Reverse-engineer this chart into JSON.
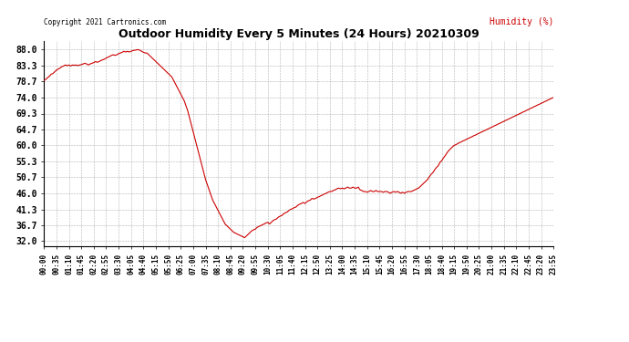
{
  "title": "Outdoor Humidity Every 5 Minutes (24 Hours) 20210309",
  "ylabel": "Humidity (%)",
  "copyright_text": "Copyright 2021 Cartronics.com",
  "line_color": "#cc0000",
  "background_color": "#ffffff",
  "grid_color": "#aaaaaa",
  "yticks": [
    32.0,
    36.7,
    41.3,
    46.0,
    50.7,
    55.3,
    60.0,
    64.7,
    69.3,
    74.0,
    78.7,
    83.3,
    88.0
  ],
  "ylim": [
    30.5,
    90.5
  ],
  "x_tick_labels": [
    "00:00",
    "00:35",
    "01:10",
    "01:45",
    "02:20",
    "02:55",
    "03:30",
    "04:05",
    "04:40",
    "05:15",
    "05:50",
    "06:25",
    "07:00",
    "07:35",
    "08:10",
    "08:45",
    "09:20",
    "09:55",
    "10:30",
    "11:05",
    "11:40",
    "12:15",
    "12:50",
    "13:25",
    "14:00",
    "14:35",
    "15:10",
    "15:45",
    "16:20",
    "16:55",
    "17:30",
    "18:05",
    "18:40",
    "19:15",
    "19:50",
    "20:25",
    "21:00",
    "21:35",
    "22:10",
    "22:45",
    "23:20",
    "23:55"
  ],
  "humidity_data": [
    79.0,
    79.3,
    79.8,
    80.2,
    80.8,
    81.0,
    81.5,
    82.0,
    82.3,
    82.6,
    83.0,
    83.2,
    83.5,
    83.3,
    83.5,
    83.2,
    83.5,
    83.4,
    83.5,
    83.3,
    83.5,
    83.6,
    83.8,
    84.0,
    83.8,
    83.5,
    83.8,
    84.0,
    84.2,
    84.5,
    84.3,
    84.5,
    84.8,
    85.0,
    85.2,
    85.5,
    85.8,
    86.0,
    86.3,
    86.5,
    86.3,
    86.5,
    86.8,
    87.0,
    87.2,
    87.5,
    87.3,
    87.5,
    87.3,
    87.5,
    87.7,
    87.8,
    87.9,
    88.0,
    87.8,
    87.5,
    87.2,
    87.0,
    87.0,
    86.5,
    86.0,
    85.5,
    85.0,
    84.5,
    84.0,
    83.5,
    83.0,
    82.5,
    82.0,
    81.5,
    81.0,
    80.5,
    80.0,
    79.0,
    78.0,
    77.0,
    76.0,
    75.0,
    74.0,
    73.0,
    71.5,
    70.0,
    68.0,
    66.0,
    64.0,
    62.0,
    60.0,
    58.0,
    56.0,
    54.0,
    52.0,
    50.0,
    48.5,
    47.0,
    45.5,
    44.0,
    43.0,
    42.0,
    41.0,
    40.0,
    39.0,
    38.0,
    37.0,
    36.5,
    36.0,
    35.5,
    35.0,
    34.5,
    34.3,
    34.0,
    33.8,
    33.5,
    33.3,
    33.0,
    33.5,
    34.0,
    34.5,
    35.0,
    35.3,
    35.5,
    36.0,
    36.3,
    36.5,
    36.8,
    37.0,
    37.3,
    37.5,
    37.0,
    37.5,
    38.0,
    38.3,
    38.5,
    39.0,
    39.3,
    39.5,
    40.0,
    40.3,
    40.5,
    41.0,
    41.3,
    41.5,
    41.8,
    42.0,
    42.5,
    42.8,
    43.0,
    43.3,
    43.0,
    43.5,
    43.8,
    44.0,
    44.5,
    44.3,
    44.5,
    44.8,
    45.0,
    45.3,
    45.5,
    45.8,
    46.0,
    46.3,
    46.5,
    46.5,
    46.8,
    47.0,
    47.3,
    47.5,
    47.3,
    47.5,
    47.3,
    47.5,
    47.8,
    47.5,
    47.5,
    47.8,
    47.5,
    47.5,
    47.8,
    47.0,
    46.8,
    46.5,
    46.5,
    46.3,
    46.5,
    46.8,
    46.5,
    46.5,
    46.8,
    46.5,
    46.5,
    46.5,
    46.3,
    46.5,
    46.5,
    46.3,
    46.0,
    46.3,
    46.5,
    46.3,
    46.5,
    46.3,
    46.0,
    46.3,
    46.0,
    46.3,
    46.5,
    46.5,
    46.5,
    46.8,
    47.0,
    47.3,
    47.5,
    48.0,
    48.5,
    49.0,
    49.5,
    50.0,
    50.8,
    51.5,
    52.0,
    52.8,
    53.5,
    54.0,
    55.0,
    55.5,
    56.3,
    57.0,
    57.8,
    58.5,
    59.0,
    59.5,
    60.0,
    60.2,
    60.5,
    60.8,
    61.0,
    61.3,
    61.5,
    61.8,
    62.0,
    62.3,
    62.5,
    62.8,
    63.0,
    63.3,
    63.5,
    63.8,
    64.0,
    64.3,
    64.5,
    64.8,
    65.0,
    65.3,
    65.5,
    65.8,
    66.0,
    66.3,
    66.5,
    66.8,
    67.0,
    67.3,
    67.5,
    67.8,
    68.0,
    68.3,
    68.5,
    68.8,
    69.0,
    69.3,
    69.5,
    69.8,
    70.0,
    70.3,
    70.5,
    70.8,
    71.0,
    71.3,
    71.5,
    71.8,
    72.0,
    72.3,
    72.5,
    72.8,
    73.0,
    73.3,
    73.5,
    73.8,
    74.0
  ]
}
